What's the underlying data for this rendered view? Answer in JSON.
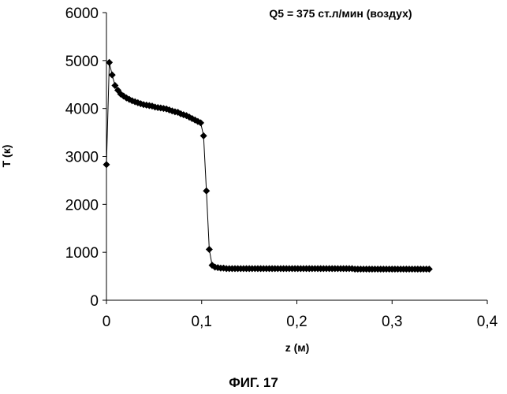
{
  "chart_data": {
    "type": "scatter",
    "title": "",
    "annotation": "Q5 = 375 ст.л/мин (воздух)",
    "xlabel": "z (м)",
    "ylabel": "T (к)",
    "xlim": [
      0,
      0.4
    ],
    "ylim": [
      0,
      6000
    ],
    "x_ticks": [
      "0",
      "0,1",
      "0,2",
      "0,3",
      "0,4"
    ],
    "y_ticks": [
      "0",
      "1000",
      "2000",
      "3000",
      "4000",
      "5000",
      "6000"
    ],
    "grid": false,
    "legend": "none",
    "marker": "diamond",
    "series": [
      {
        "color": "#000000",
        "x": [
          0.0,
          0.003,
          0.006,
          0.009,
          0.012,
          0.015,
          0.018,
          0.021,
          0.024,
          0.027,
          0.03,
          0.033,
          0.036,
          0.039,
          0.042,
          0.045,
          0.048,
          0.051,
          0.054,
          0.057,
          0.06,
          0.063,
          0.066,
          0.069,
          0.072,
          0.075,
          0.078,
          0.081,
          0.084,
          0.087,
          0.09,
          0.093,
          0.096,
          0.099,
          0.102,
          0.105,
          0.108,
          0.111,
          0.114,
          0.117,
          0.12,
          0.123,
          0.126,
          0.129,
          0.132,
          0.135,
          0.138,
          0.141,
          0.144,
          0.147,
          0.15,
          0.153,
          0.156,
          0.159,
          0.162,
          0.165,
          0.168,
          0.171,
          0.174,
          0.177,
          0.18,
          0.183,
          0.186,
          0.189,
          0.192,
          0.195,
          0.198,
          0.201,
          0.204,
          0.207,
          0.21,
          0.213,
          0.216,
          0.219,
          0.222,
          0.225,
          0.228,
          0.231,
          0.234,
          0.237,
          0.24,
          0.243,
          0.246,
          0.249,
          0.252,
          0.255,
          0.258,
          0.261,
          0.264,
          0.267,
          0.27,
          0.273,
          0.276,
          0.279,
          0.282,
          0.285,
          0.288,
          0.291,
          0.294,
          0.297,
          0.3,
          0.303,
          0.306,
          0.309,
          0.312,
          0.315,
          0.318,
          0.321,
          0.324,
          0.327,
          0.33,
          0.333,
          0.336,
          0.339
        ],
        "y": [
          2830,
          4960,
          4700,
          4480,
          4380,
          4300,
          4260,
          4220,
          4190,
          4160,
          4140,
          4120,
          4100,
          4080,
          4070,
          4060,
          4050,
          4030,
          4020,
          4010,
          4000,
          3990,
          3970,
          3950,
          3930,
          3920,
          3890,
          3870,
          3850,
          3820,
          3790,
          3760,
          3730,
          3700,
          3430,
          2280,
          1060,
          730,
          690,
          680,
          670,
          670,
          660,
          660,
          660,
          660,
          660,
          660,
          660,
          660,
          660,
          660,
          660,
          660,
          660,
          660,
          660,
          660,
          660,
          660,
          660,
          660,
          660,
          660,
          660,
          660,
          660,
          660,
          660,
          660,
          660,
          660,
          660,
          660,
          660,
          660,
          660,
          660,
          660,
          660,
          660,
          660,
          660,
          660,
          660,
          660,
          660,
          650,
          650,
          650,
          650,
          650,
          650,
          650,
          650,
          650,
          650,
          650,
          650,
          650,
          650,
          650,
          650,
          650,
          650,
          650,
          650,
          650,
          650,
          650,
          650,
          650,
          650,
          650
        ]
      }
    ]
  },
  "figure": {
    "caption": "ФИГ. 17"
  }
}
